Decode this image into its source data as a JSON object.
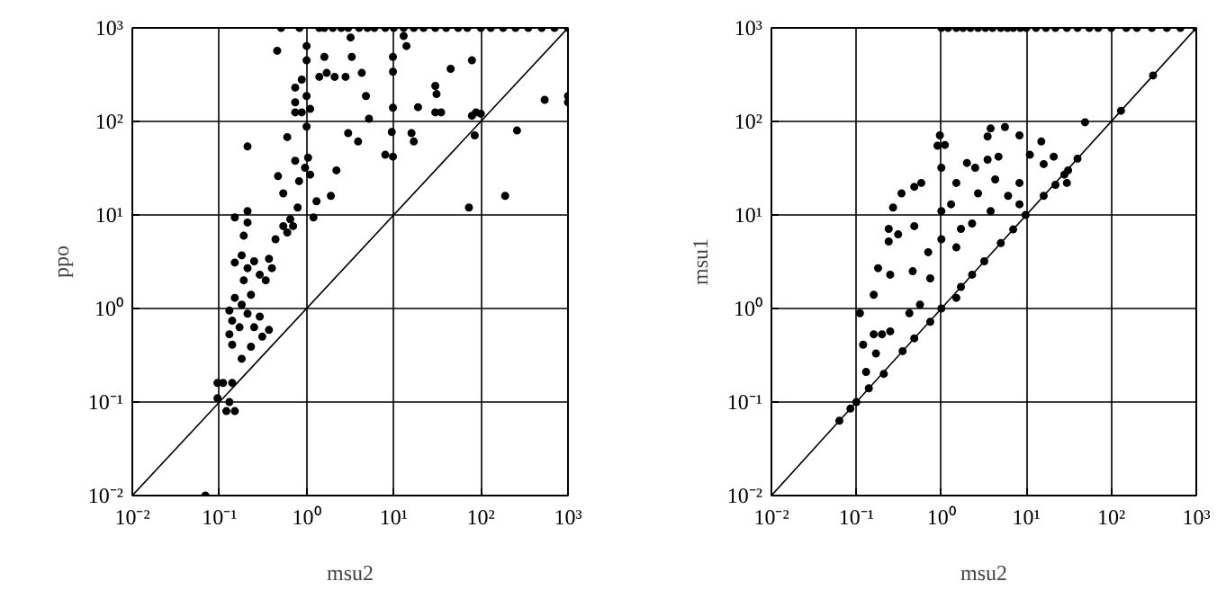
{
  "chart_data": [
    {
      "type": "scatter",
      "xlabel": "msu2",
      "ylabel": "ppo",
      "log": "xy",
      "grid": true,
      "xlim": [
        0.01,
        1000
      ],
      "ylim": [
        0.01,
        1000
      ],
      "xticks": [
        {
          "value": 0.01,
          "label": "10⁻²"
        },
        {
          "value": 0.1,
          "label": "10⁻¹"
        },
        {
          "value": 1,
          "label": "10⁰"
        },
        {
          "value": 10,
          "label": "10¹"
        },
        {
          "value": 100,
          "label": "10²"
        },
        {
          "value": 1000,
          "label": "10³"
        }
      ],
      "yticks": [
        {
          "value": 0.01,
          "label": "10⁻²"
        },
        {
          "value": 0.1,
          "label": "10⁻¹"
        },
        {
          "value": 1,
          "label": "10⁰"
        },
        {
          "value": 10,
          "label": "10¹"
        },
        {
          "value": 100,
          "label": "10²"
        },
        {
          "value": 1000,
          "label": "10³"
        }
      ],
      "series": [
        {
          "marker": "circle",
          "color": "#000000",
          "x": [
            0.51,
            0.83,
            1.4,
            1.6,
            2,
            2.5,
            3,
            4,
            5,
            6,
            8,
            10,
            13,
            17,
            22,
            30,
            40,
            55,
            70,
            100,
            130,
            180,
            250,
            350,
            500,
            700,
            1000,
            0.46,
            1.0,
            1.0,
            3.2,
            13,
            14,
            3.3,
            9.8,
            1.6,
            1.7,
            1.4,
            2.1,
            2.8,
            4.3,
            9.8,
            45,
            79,
            30,
            31,
            30,
            35,
            19,
            9.8,
            4.8,
            5.2,
            0.74,
            0.74,
            0.74,
            0.88,
            1.0,
            1.1,
            1.0,
            0.88,
            540,
            1000,
            1000,
            88,
            85,
            260,
            79,
            100,
            190,
            73,
            3.0,
            3.9,
            9.5,
            9.8,
            8.0,
            16,
            17,
            0.6,
            0.21,
            0.74,
            1.04,
            2.2,
            0.47,
            0.82,
            1.1,
            0.96,
            0.54,
            1.9,
            1.3,
            0.79,
            1.2,
            0.65,
            0.6,
            0.44,
            0.54,
            0.7,
            0.15,
            0.21,
            0.21,
            0.19,
            0.18,
            0.21,
            0.19,
            0.23,
            0.18,
            0.25,
            0.29,
            0.37,
            0.4,
            0.34,
            0.15,
            0.15,
            0.13,
            0.14,
            0.13,
            0.17,
            0.21,
            0.25,
            0.29,
            0.37,
            0.31,
            0.23,
            0.14,
            0.18,
            0.095,
            0.11,
            0.14,
            0.095,
            0.13,
            0.12,
            0.15,
            0.069
          ],
          "values": [
            1000,
            1000,
            1000,
            1000,
            1000,
            1000,
            1000,
            1000,
            1000,
            1000,
            1000,
            1000,
            1000,
            1000,
            1000,
            1000,
            1000,
            1000,
            1000,
            1000,
            1000,
            1000,
            1000,
            1000,
            1000,
            1000,
            1000,
            570,
            640,
            450,
            790,
            820,
            640,
            490,
            490,
            490,
            330,
            300,
            300,
            300,
            330,
            340,
            365,
            450,
            240,
            196,
            125,
            125,
            142,
            140,
            187,
            107,
            230,
            160,
            125,
            125,
            88,
            136,
            187,
            280,
            170,
            187,
            160,
            125,
            71,
            80,
            115,
            121,
            16,
            12,
            75,
            61,
            77,
            42,
            44,
            75,
            61,
            68,
            54,
            38,
            41,
            30,
            26,
            23,
            27,
            32,
            17,
            16,
            14,
            12,
            9.4,
            9.0,
            6.5,
            5.5,
            7.6,
            7.6,
            9.4,
            11,
            8.3,
            6.0,
            3.7,
            2.7,
            2.0,
            1.4,
            1.1,
            3.2,
            2.3,
            3.4,
            2.7,
            2.0,
            3.1,
            1.3,
            0.95,
            0.74,
            0.53,
            0.63,
            0.88,
            0.63,
            0.82,
            0.59,
            0.5,
            0.39,
            0.41,
            0.29,
            0.16,
            0.16,
            0.16,
            0.11,
            0.1,
            0.08,
            0.08,
            0.01
          ]
        },
        {
          "type": "line",
          "color": "#000000",
          "x": [
            0.01,
            1000
          ],
          "values": [
            0.01,
            1000
          ]
        }
      ]
    },
    {
      "type": "scatter",
      "xlabel": "msu2",
      "ylabel": "msu1",
      "log": "xy",
      "grid": true,
      "xlim": [
        0.01,
        1000
      ],
      "ylim": [
        0.01,
        1000
      ],
      "xticks": [
        {
          "value": 0.01,
          "label": "10⁻²"
        },
        {
          "value": 0.1,
          "label": "10⁻¹"
        },
        {
          "value": 1,
          "label": "10⁰"
        },
        {
          "value": 10,
          "label": "10¹"
        },
        {
          "value": 100,
          "label": "10²"
        },
        {
          "value": 1000,
          "label": "10³"
        }
      ],
      "yticks": [
        {
          "value": 0.01,
          "label": "10⁻²"
        },
        {
          "value": 0.1,
          "label": "10⁻¹"
        },
        {
          "value": 1,
          "label": "10⁰"
        },
        {
          "value": 10,
          "label": "10¹"
        },
        {
          "value": 100,
          "label": "10²"
        },
        {
          "value": 1000,
          "label": "10³"
        }
      ],
      "series": [
        {
          "marker": "circle",
          "color": "#000000",
          "x": [
            1.0,
            1.2,
            1.5,
            1.8,
            2.2,
            2.7,
            3.3,
            4,
            5,
            6,
            7,
            8.5,
            10,
            13,
            17,
            22,
            30,
            40,
            55,
            70,
            100,
            150,
            200,
            300,
            450,
            650,
            1000,
            310,
            130,
            49,
            40,
            31,
            28,
            22,
            16,
            9.8,
            7,
            5,
            3.2,
            2.3,
            1.7,
            1.0,
            0.74,
            0.48,
            0.35,
            0.21,
            0.14,
            0.1,
            0.085,
            0.063,
            21,
            30,
            15,
            16,
            8.3,
            5.6,
            3.8,
            3.5,
            4.7,
            3.5,
            2.5,
            2.0,
            1.5,
            1.0,
            0.96,
            1.1,
            0.9,
            0.34,
            0.27,
            0.48,
            0.58,
            0.24,
            0.31,
            0.48,
            0.24,
            0.18,
            0.25,
            0.46,
            0.74,
            0.7,
            2.3,
            1.7,
            1.0,
            1.5,
            1.0,
            1.3,
            6.1,
            8.3,
            4.3,
            2.7,
            8.3,
            3.8,
            11,
            1.5,
            0.56,
            0.42,
            0.16,
            0.11,
            0.12,
            0.16,
            0.17,
            0.13,
            0.2,
            0.25
          ],
          "values": [
            1000,
            1000,
            1000,
            1000,
            1000,
            1000,
            1000,
            1000,
            1000,
            1000,
            1000,
            1000,
            1000,
            1000,
            1000,
            1000,
            1000,
            1000,
            1000,
            1000,
            1000,
            1000,
            1000,
            1000,
            1000,
            1000,
            1000,
            310,
            130,
            98,
            40,
            30,
            27,
            21,
            16,
            10,
            7,
            5,
            3.2,
            2.3,
            1.7,
            1.0,
            0.72,
            0.48,
            0.35,
            0.2,
            0.14,
            0.1,
            0.085,
            0.063,
            42,
            22,
            61,
            35,
            71,
            87,
            84,
            69,
            42,
            39,
            32,
            36,
            22,
            32,
            71,
            56,
            55,
            17,
            12,
            20,
            22,
            7.1,
            6.2,
            7.6,
            5.2,
            2.7,
            2.3,
            2.5,
            2.1,
            4.0,
            8.1,
            7.1,
            5.5,
            4.5,
            11,
            13,
            16,
            22,
            24,
            17,
            13,
            11,
            44,
            1.3,
            1.1,
            0.89,
            1.4,
            0.89,
            0.41,
            0.53,
            0.33,
            0.21,
            0.53,
            0.57
          ]
        },
        {
          "type": "line",
          "color": "#000000",
          "x": [
            0.01,
            1000
          ],
          "values": [
            0.01,
            1000
          ]
        }
      ]
    }
  ]
}
